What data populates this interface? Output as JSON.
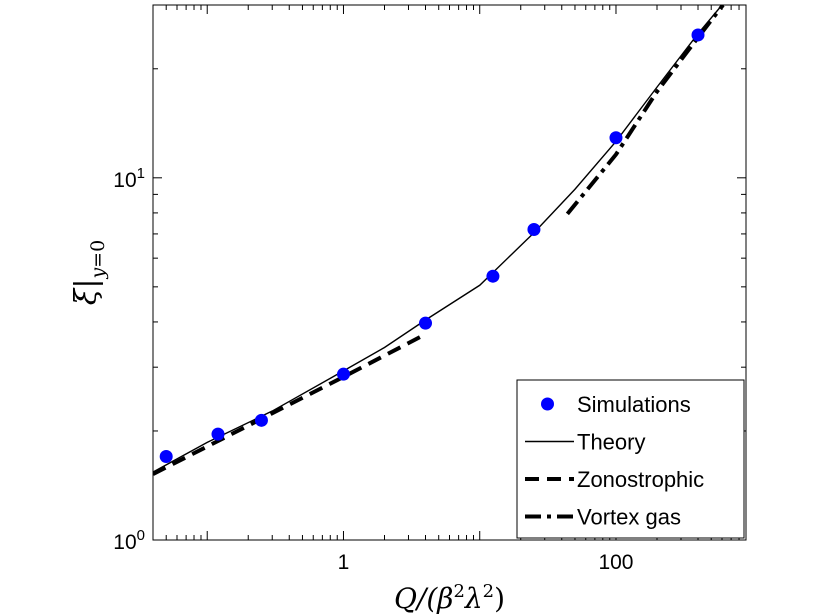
{
  "chart_data": {
    "type": "scatter",
    "x_scale": "log",
    "y_scale": "log",
    "xlim": [
      0.04,
      900
    ],
    "ylim": [
      1,
      30
    ],
    "xlabel": "Q/(β²λ²)",
    "ylabel": "ξ|y=0",
    "x_ticks": [
      {
        "value": 1,
        "label": "1"
      },
      {
        "value": 100,
        "label": "100"
      }
    ],
    "y_ticks": [
      {
        "value": 1,
        "base": "10",
        "exp": "0"
      },
      {
        "value": 10,
        "base": "10",
        "exp": "1"
      }
    ],
    "grid": false,
    "legend_position": "bottom-right",
    "series": [
      {
        "name": "Simulations",
        "kind": "markers",
        "color": "#0000ff",
        "points": [
          {
            "x": 0.05,
            "y": 1.7
          },
          {
            "x": 0.12,
            "y": 1.96
          },
          {
            "x": 0.25,
            "y": 2.14
          },
          {
            "x": 1.0,
            "y": 2.87
          },
          {
            "x": 4.0,
            "y": 3.97
          },
          {
            "x": 12.5,
            "y": 5.35
          },
          {
            "x": 25.0,
            "y": 7.2
          },
          {
            "x": 100.0,
            "y": 12.9
          },
          {
            "x": 400.0,
            "y": 24.8
          }
        ]
      },
      {
        "name": "Theory",
        "kind": "line",
        "color": "#000000",
        "style": "solid",
        "points": [
          {
            "x": 0.04,
            "y": 1.54
          },
          {
            "x": 0.1,
            "y": 1.86
          },
          {
            "x": 0.3,
            "y": 2.27
          },
          {
            "x": 1.0,
            "y": 2.93
          },
          {
            "x": 2.0,
            "y": 3.4
          },
          {
            "x": 4.0,
            "y": 4.05
          },
          {
            "x": 10.0,
            "y": 5.05
          },
          {
            "x": 25.0,
            "y": 7.05
          },
          {
            "x": 50.0,
            "y": 9.3
          },
          {
            "x": 100.0,
            "y": 12.6
          },
          {
            "x": 200.0,
            "y": 17.8
          },
          {
            "x": 400.0,
            "y": 25.0
          },
          {
            "x": 600.0,
            "y": 30.0
          }
        ]
      },
      {
        "name": "Zonostrophic",
        "kind": "line",
        "color": "#000000",
        "style": "dashed",
        "points": [
          {
            "x": 0.04,
            "y": 1.52
          },
          {
            "x": 0.2,
            "y": 2.07
          },
          {
            "x": 1.0,
            "y": 2.82
          },
          {
            "x": 4.0,
            "y": 3.7
          }
        ]
      },
      {
        "name": "Vortex gas",
        "kind": "line",
        "color": "#000000",
        "style": "dashdot",
        "points": [
          {
            "x": 44.0,
            "y": 7.95
          },
          {
            "x": 100.0,
            "y": 11.6
          },
          {
            "x": 200.0,
            "y": 17.3
          },
          {
            "x": 400.0,
            "y": 24.4
          },
          {
            "x": 610.0,
            "y": 30.0
          }
        ]
      }
    ]
  }
}
